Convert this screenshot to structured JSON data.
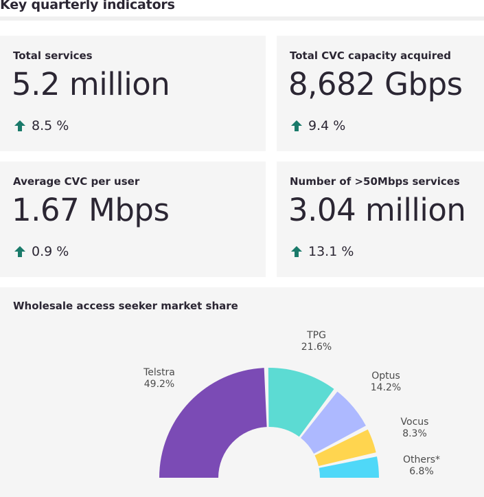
{
  "page": {
    "title": "Key quarterly indicators"
  },
  "colors": {
    "arrow_up": "#1a7a6a",
    "card_bg": "#f5f5f5"
  },
  "indicators": [
    {
      "label": "Total services",
      "value": "5.2 million",
      "change": "8.5 %",
      "direction": "up",
      "icon": "arrow-up-icon"
    },
    {
      "label": "Total CVC capacity acquired",
      "value": "8,682 Gbps",
      "change": "9.4 %",
      "direction": "up",
      "icon": "arrow-up-icon"
    },
    {
      "label": "Average CVC per user",
      "value": "1.67 Mbps",
      "change": "0.9 %",
      "direction": "up",
      "icon": "arrow-up-icon"
    },
    {
      "label": "Number of >50Mbps services",
      "value": "3.04 million",
      "change": "13.1 %",
      "direction": "up",
      "icon": "arrow-up-icon"
    }
  ],
  "chart_data": {
    "type": "pie",
    "subtype": "semi-donut",
    "title": "Wholesale access seeker market share",
    "categories": [
      "Telstra",
      "TPG",
      "Optus",
      "Vocus",
      "Others*"
    ],
    "values": [
      49.2,
      21.6,
      14.2,
      8.3,
      6.8
    ],
    "value_labels": [
      "49.2%",
      "21.6%",
      "14.2%",
      "8.3%",
      "6.8%"
    ],
    "colors": [
      "#7b4bb5",
      "#5cdbd3",
      "#adb9ff",
      "#ffd54f",
      "#4fd8f8"
    ],
    "legend": "none"
  }
}
